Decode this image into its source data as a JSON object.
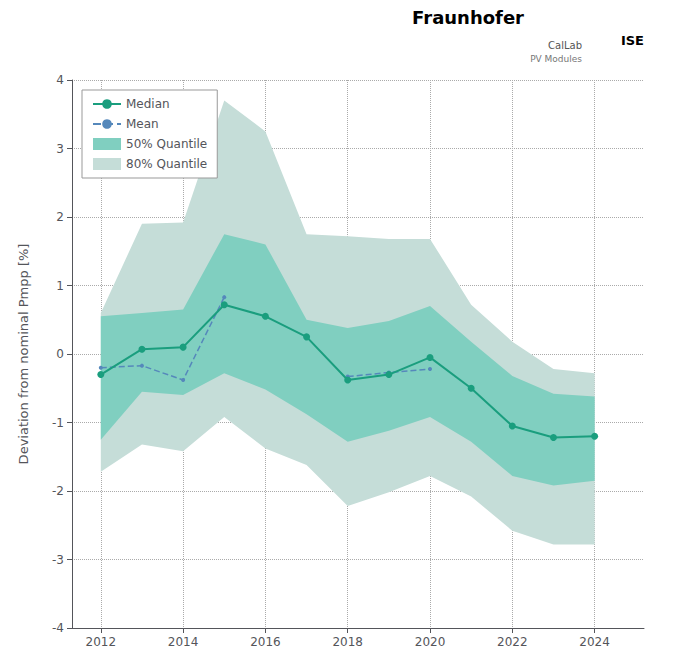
{
  "chart_data": {
    "type": "line",
    "y_label": "Deviation from nominal Pmpp [%]",
    "x": [
      2012,
      2013,
      2014,
      2015,
      2016,
      2017,
      2018,
      2019,
      2020,
      2021,
      2022,
      2023,
      2024
    ],
    "series": [
      {
        "name": "Median",
        "type": "line",
        "color": "#1a9e7e",
        "marker": "circle",
        "line_style": "solid",
        "values": [
          -0.3,
          0.07,
          0.1,
          0.72,
          0.55,
          0.25,
          -0.38,
          -0.3,
          -0.05,
          -0.5,
          -1.05,
          -1.22,
          -1.2
        ]
      },
      {
        "name": "Mean",
        "type": "line",
        "color": "#5588bb",
        "marker": "point",
        "line_style": "dashed",
        "values": [
          -0.2,
          -0.17,
          -0.38,
          0.83,
          null,
          null,
          -0.33,
          -0.27,
          -0.22,
          null,
          null,
          null,
          null
        ]
      },
      {
        "name": "50% Quantile",
        "type": "band",
        "color": "#80cfc0",
        "lower": [
          -1.25,
          -0.55,
          -0.6,
          -0.28,
          -0.52,
          -0.88,
          -1.28,
          -1.12,
          -0.92,
          -1.28,
          -1.78,
          -1.92,
          -1.85
        ],
        "upper": [
          0.55,
          0.6,
          0.65,
          1.75,
          1.6,
          0.5,
          0.38,
          0.48,
          0.7,
          0.18,
          -0.32,
          -0.58,
          -0.62
        ]
      },
      {
        "name": "80% Quantile",
        "type": "band",
        "color": "#c5ddd8",
        "lower": [
          -1.72,
          -1.32,
          -1.42,
          -0.92,
          -1.38,
          -1.62,
          -2.22,
          -2.02,
          -1.78,
          -2.08,
          -2.58,
          -2.78,
          -2.78
        ],
        "upper": [
          0.6,
          1.9,
          1.92,
          3.7,
          3.25,
          1.75,
          1.72,
          1.68,
          1.68,
          0.72,
          0.18,
          -0.22,
          -0.28
        ]
      }
    ],
    "xlim": [
      2011.3,
      2025.2
    ],
    "xticks": [
      2012,
      2014,
      2016,
      2018,
      2020,
      2022,
      2024
    ],
    "ylim": [
      -4,
      4
    ],
    "yticks": [
      -4,
      -3,
      -2,
      -1,
      0,
      1,
      2,
      3,
      4
    ],
    "grid": true,
    "legend": "upper left",
    "annotations": [
      "Fraunhofer",
      "ISE",
      "CalLab",
      "PV Modules"
    ]
  }
}
